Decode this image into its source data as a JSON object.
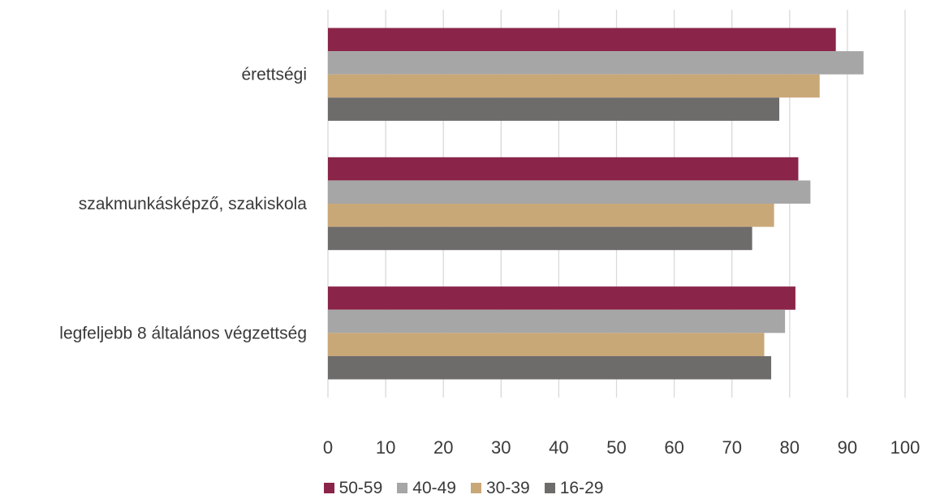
{
  "chart_data": {
    "type": "bar",
    "orientation": "horizontal",
    "categories": [
      "érettségi",
      "szakmunkásképző, szakiskola",
      "legfeljebb 8 általános végzettség"
    ],
    "series": [
      {
        "name": "50-59",
        "color": "#8B2449",
        "values": [
          88,
          81.5,
          81
        ]
      },
      {
        "name": "40-49",
        "color": "#A6A6A6",
        "values": [
          92.8,
          83.6,
          79.2
        ]
      },
      {
        "name": "30-39",
        "color": "#C9A878",
        "values": [
          85.2,
          77.3,
          75.6
        ]
      },
      {
        "name": "16-29",
        "color": "#6E6B6B",
        "values": [
          78.2,
          73.5,
          76.8
        ]
      }
    ],
    "xlim": [
      0,
      100
    ],
    "xticks": [
      "0",
      "10",
      "20",
      "30",
      "40",
      "50",
      "60",
      "70",
      "80",
      "90",
      "100"
    ],
    "grid": true,
    "legend_position": "bottom"
  }
}
